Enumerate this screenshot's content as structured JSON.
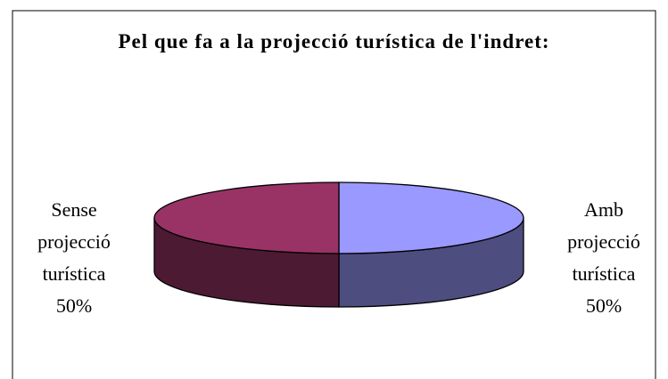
{
  "chart_data": {
    "type": "pie",
    "title": "Pel que fa a la projecció turística de l'indret:",
    "categories": [
      "Amb projecció turística",
      "Sense projecció turística"
    ],
    "values": [
      50,
      50
    ],
    "value_labels": [
      "50%",
      "50%"
    ],
    "colors": [
      "#9999ff",
      "#993366"
    ]
  }
}
